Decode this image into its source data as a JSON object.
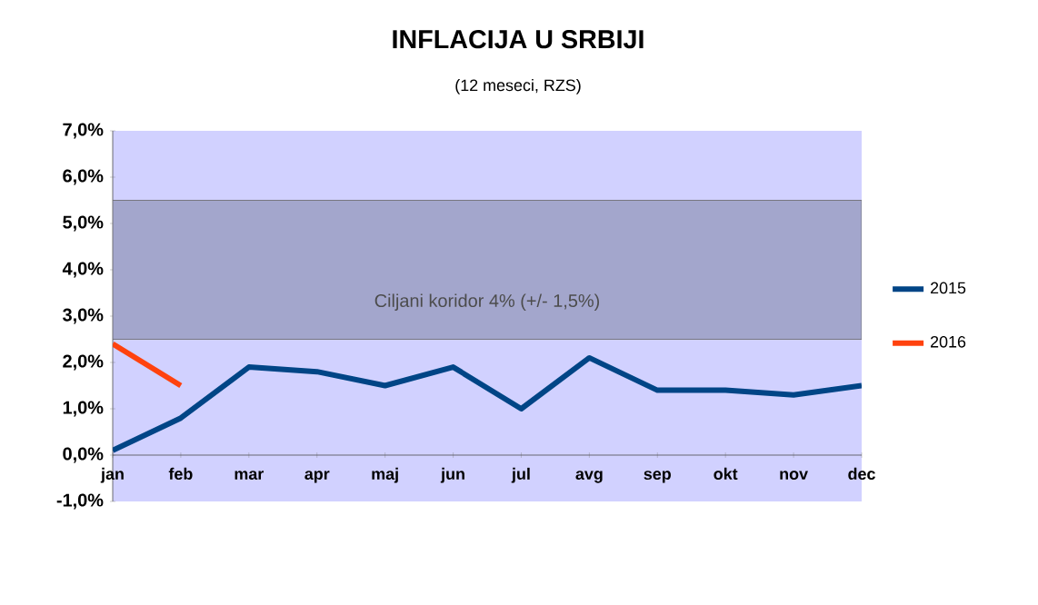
{
  "chart_data": {
    "type": "line",
    "title": "INFLACIJA U SRBIJI",
    "subtitle": "(12 meseci, RZS)",
    "categories": [
      "jan",
      "feb",
      "mar",
      "apr",
      "maj",
      "jun",
      "jul",
      "avg",
      "sep",
      "okt",
      "nov",
      "dec"
    ],
    "series": [
      {
        "name": "2015",
        "color": "#004586",
        "values": [
          0.1,
          0.8,
          1.9,
          1.8,
          1.5,
          1.9,
          1.0,
          2.1,
          1.4,
          1.4,
          1.3,
          1.5
        ]
      },
      {
        "name": "2016",
        "color": "#ff420e",
        "values": [
          2.4,
          1.5,
          null,
          null,
          null,
          null,
          null,
          null,
          null,
          null,
          null,
          null
        ]
      }
    ],
    "ylim": [
      -1,
      7
    ],
    "yticks": [
      {
        "value": -1,
        "label": "-1,0%"
      },
      {
        "value": 0,
        "label": "0,0%"
      },
      {
        "value": 1,
        "label": "1,0%"
      },
      {
        "value": 2,
        "label": "2,0%"
      },
      {
        "value": 3,
        "label": "3,0%"
      },
      {
        "value": 4,
        "label": "4,0%"
      },
      {
        "value": 5,
        "label": "5,0%"
      },
      {
        "value": 6,
        "label": "6,0%"
      },
      {
        "value": 7,
        "label": "7,0%"
      }
    ],
    "bands": [
      {
        "axis": "y",
        "from": 2.5,
        "to": 5.5,
        "label": "Ciljani koridor 4% (+/- 1,5%)",
        "color": "#a3a6cc"
      }
    ],
    "legend": "right",
    "grid": false,
    "marker": "none",
    "line_style": "solid"
  }
}
